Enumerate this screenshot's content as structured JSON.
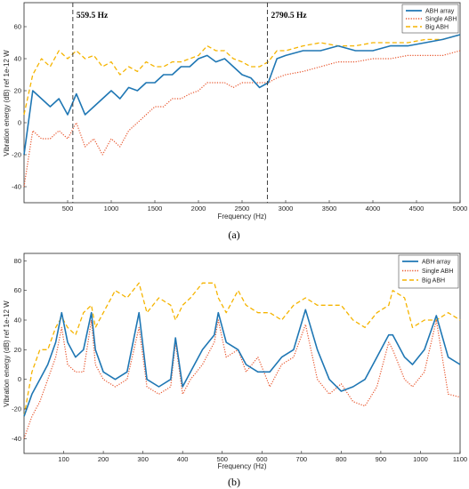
{
  "colors": {
    "abh_array": "#1f77b4",
    "single_abh": "#e8542b",
    "big_abh": "#f5b400",
    "axis": "#262626",
    "marker_line": "#404040"
  },
  "chart_data": [
    {
      "id": "a",
      "type": "line",
      "subfigure_label": "(a)",
      "xlabel": "Frequency (Hz)",
      "ylabel": "Vibration energy (dB) ref 1e-12 W",
      "xlim": [
        0,
        5000
      ],
      "ylim": [
        -50,
        75
      ],
      "xticks": [
        500,
        1000,
        1500,
        2000,
        2500,
        3000,
        3500,
        4000,
        4500,
        5000
      ],
      "yticks": [
        -40,
        -20,
        0,
        20,
        40,
        60
      ],
      "grid": false,
      "legend_position": "top-right",
      "annotations": [
        {
          "x": 559.5,
          "label": "559.5 Hz"
        },
        {
          "x": 2790.5,
          "label": "2790.5 Hz"
        }
      ],
      "series": [
        {
          "name": "ABH array",
          "style": "solid",
          "x": [
            0,
            100,
            200,
            300,
            400,
            500,
            600,
            700,
            800,
            900,
            1000,
            1100,
            1200,
            1300,
            1400,
            1500,
            1600,
            1700,
            1800,
            1900,
            2000,
            2100,
            2200,
            2300,
            2400,
            2500,
            2600,
            2700,
            2800,
            2900,
            3000,
            3200,
            3400,
            3600,
            3800,
            4000,
            4200,
            4400,
            4600,
            4800,
            5000
          ],
          "y": [
            -20,
            20,
            15,
            10,
            15,
            5,
            18,
            5,
            10,
            15,
            20,
            15,
            22,
            20,
            25,
            25,
            30,
            30,
            35,
            35,
            40,
            42,
            38,
            40,
            35,
            30,
            28,
            22,
            25,
            40,
            42,
            45,
            45,
            48,
            45,
            45,
            48,
            48,
            50,
            52,
            55
          ]
        },
        {
          "name": "Single ABH",
          "style": "dotted",
          "x": [
            0,
            100,
            200,
            300,
            400,
            500,
            600,
            700,
            800,
            900,
            1000,
            1100,
            1200,
            1300,
            1400,
            1500,
            1600,
            1700,
            1800,
            1900,
            2000,
            2100,
            2200,
            2300,
            2400,
            2500,
            2600,
            2700,
            2800,
            2900,
            3000,
            3200,
            3400,
            3600,
            3800,
            4000,
            4200,
            4400,
            4600,
            4800,
            5000
          ],
          "y": [
            -40,
            -5,
            -10,
            -10,
            -5,
            -10,
            0,
            -15,
            -10,
            -20,
            -10,
            -15,
            -5,
            0,
            5,
            10,
            10,
            15,
            15,
            18,
            20,
            25,
            25,
            25,
            22,
            25,
            25,
            25,
            25,
            28,
            30,
            32,
            35,
            38,
            38,
            40,
            40,
            42,
            42,
            42,
            45
          ]
        },
        {
          "name": "Big ABH",
          "style": "dashed",
          "x": [
            0,
            100,
            200,
            300,
            400,
            500,
            600,
            700,
            800,
            900,
            1000,
            1100,
            1200,
            1300,
            1400,
            1500,
            1600,
            1700,
            1800,
            1900,
            2000,
            2100,
            2200,
            2300,
            2400,
            2500,
            2600,
            2700,
            2800,
            2900,
            3000,
            3200,
            3400,
            3600,
            3800,
            4000,
            4200,
            4400,
            4600,
            4800,
            5000
          ],
          "y": [
            5,
            30,
            40,
            35,
            45,
            40,
            45,
            40,
            42,
            35,
            38,
            30,
            35,
            32,
            38,
            35,
            35,
            38,
            38,
            40,
            42,
            48,
            45,
            45,
            40,
            38,
            35,
            35,
            38,
            45,
            45,
            48,
            50,
            48,
            48,
            50,
            50,
            50,
            52,
            52,
            55
          ]
        }
      ]
    },
    {
      "id": "b",
      "type": "line",
      "subfigure_label": "(b)",
      "xlabel": "Frequency (Hz)",
      "ylabel": "Vibration energy (dB) ref 1e-12 W",
      "xlim": [
        0,
        1100
      ],
      "ylim": [
        -50,
        85
      ],
      "xticks": [
        100,
        200,
        300,
        400,
        500,
        600,
        700,
        800,
        900,
        1000,
        1100
      ],
      "yticks": [
        -40,
        -20,
        0,
        20,
        40,
        60,
        80
      ],
      "grid": false,
      "legend_position": "top-right",
      "series": [
        {
          "name": "ABH array",
          "style": "solid",
          "x": [
            0,
            20,
            40,
            60,
            80,
            95,
            110,
            130,
            150,
            170,
            180,
            200,
            230,
            260,
            290,
            310,
            340,
            370,
            382,
            400,
            420,
            450,
            480,
            490,
            510,
            540,
            560,
            590,
            620,
            650,
            680,
            710,
            740,
            770,
            800,
            830,
            860,
            890,
            920,
            930,
            960,
            980,
            1010,
            1040,
            1070,
            1100
          ],
          "y": [
            -25,
            -10,
            0,
            10,
            25,
            45,
            25,
            15,
            20,
            45,
            20,
            5,
            0,
            5,
            45,
            0,
            -5,
            0,
            28,
            -5,
            5,
            20,
            30,
            45,
            25,
            20,
            10,
            5,
            5,
            15,
            20,
            47,
            20,
            0,
            -8,
            -5,
            0,
            15,
            30,
            30,
            15,
            10,
            20,
            43,
            15,
            10
          ]
        },
        {
          "name": "Single ABH",
          "style": "dotted",
          "x": [
            0,
            20,
            40,
            60,
            80,
            95,
            110,
            130,
            150,
            170,
            180,
            200,
            230,
            260,
            290,
            310,
            340,
            370,
            382,
            400,
            420,
            450,
            480,
            490,
            510,
            540,
            560,
            590,
            620,
            650,
            680,
            710,
            740,
            770,
            800,
            830,
            860,
            890,
            920,
            930,
            960,
            980,
            1010,
            1040,
            1070,
            1100
          ],
          "y": [
            -40,
            -25,
            -15,
            0,
            15,
            35,
            10,
            5,
            5,
            40,
            10,
            0,
            -5,
            0,
            35,
            -5,
            -10,
            -5,
            25,
            -10,
            0,
            10,
            25,
            40,
            15,
            20,
            5,
            15,
            -5,
            10,
            15,
            37,
            0,
            -10,
            -3,
            -15,
            -18,
            -5,
            25,
            20,
            0,
            -5,
            5,
            40,
            -10,
            -12
          ]
        },
        {
          "name": "Big ABH",
          "style": "dashed",
          "x": [
            0,
            20,
            40,
            60,
            80,
            95,
            110,
            130,
            150,
            170,
            180,
            200,
            230,
            260,
            290,
            310,
            340,
            370,
            382,
            400,
            420,
            450,
            480,
            490,
            510,
            540,
            560,
            590,
            620,
            650,
            680,
            710,
            740,
            770,
            800,
            830,
            860,
            890,
            920,
            930,
            960,
            980,
            1010,
            1040,
            1070,
            1100
          ],
          "y": [
            -25,
            5,
            20,
            20,
            35,
            42,
            35,
            30,
            45,
            50,
            35,
            45,
            60,
            55,
            65,
            45,
            55,
            50,
            40,
            50,
            55,
            65,
            65,
            55,
            45,
            60,
            50,
            45,
            45,
            40,
            50,
            55,
            50,
            50,
            50,
            40,
            35,
            45,
            50,
            60,
            55,
            35,
            40,
            40,
            45,
            40
          ]
        }
      ]
    }
  ]
}
